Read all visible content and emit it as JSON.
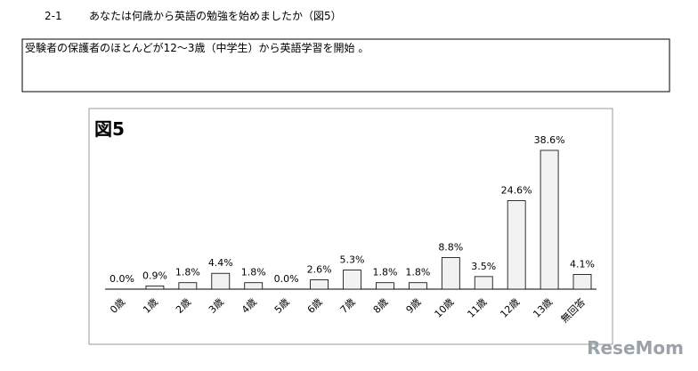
{
  "header": {
    "number": "2-1",
    "question": "あなたは何歳から英語の勉強を始めましたか（図5）"
  },
  "summary": "受験者の保護者のほとんどが12～3歳（中学生）から英語学習を開始 。",
  "watermark": "ReseMom",
  "chart_data": {
    "type": "bar",
    "title": "図5",
    "categories": [
      "0歳",
      "1歳",
      "2歳",
      "3歳",
      "4歳",
      "5歳",
      "6歳",
      "7歳",
      "8歳",
      "9歳",
      "10歳",
      "11歳",
      "12歳",
      "13歳",
      "無回答"
    ],
    "values": [
      0,
      0.9,
      1.8,
      4.4,
      1.8,
      0,
      2.6,
      5.3,
      1.8,
      1.8,
      8.8,
      3.5,
      24.6,
      38.6,
      4.1
    ],
    "value_labels": [
      "0.0%",
      "0.9%",
      "1.8%",
      "4.4%",
      "1.8%",
      "0.0%",
      "2.6%",
      "5.3%",
      "1.8%",
      "1.8%",
      "8.8%",
      "3.5%",
      "24.6%",
      "38.6%",
      "4.1%"
    ],
    "color": "#f2f2f2"
  }
}
